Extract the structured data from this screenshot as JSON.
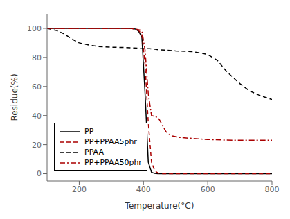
{
  "chart_data": {
    "type": "line",
    "xlabel": "Temperature(°C)",
    "ylabel": "Residue(%)",
    "xlim": [
      100,
      800
    ],
    "ylim": [
      -5,
      110
    ],
    "xticks": [
      200,
      400,
      600,
      800
    ],
    "yticks": [
      0,
      20,
      40,
      60,
      80,
      100
    ],
    "grid": false,
    "legend": "lower left",
    "series": [
      {
        "name": "PP",
        "color": "#000000",
        "line_style": "solid",
        "x": [
          100,
          355,
          365,
          375,
          385,
          395,
          405,
          415,
          425,
          435,
          445,
          460,
          800
        ],
        "values": [
          100,
          100,
          99.8,
          99.5,
          98,
          94,
          55,
          8,
          1,
          0.2,
          0,
          0,
          0
        ]
      },
      {
        "name": "PP+PPAA5phr",
        "color": "#aa0000",
        "line_style": "dashed",
        "x": [
          100,
          355,
          365,
          375,
          385,
          395,
          405,
          415,
          425,
          435,
          445,
          455,
          465,
          800
        ],
        "values": [
          100,
          100,
          99.8,
          99.5,
          98.5,
          96,
          75,
          35,
          8,
          2,
          0.5,
          0,
          0,
          0
        ]
      },
      {
        "name": "PPAA",
        "color": "#000000",
        "line_style": "dashed",
        "x": [
          100,
          130,
          155,
          175,
          200,
          230,
          260,
          300,
          340,
          370,
          390,
          410,
          420,
          430,
          440,
          450,
          470,
          500,
          550,
          580,
          600,
          630,
          660,
          700,
          730,
          760,
          800
        ],
        "values": [
          100,
          98.5,
          96,
          93,
          90,
          88.5,
          87.5,
          87,
          86.8,
          86.5,
          86.2,
          86,
          86,
          85.8,
          85.5,
          85.2,
          85,
          84.5,
          84,
          83,
          82,
          78,
          70,
          62,
          57,
          54,
          51
        ]
      },
      {
        "name": "PP+PPAA50phr",
        "color": "#aa0000",
        "line_style": "dashdot",
        "x": [
          100,
          355,
          365,
          375,
          385,
          395,
          405,
          415,
          425,
          435,
          440,
          445,
          450,
          460,
          470,
          480,
          490,
          510,
          540,
          570,
          600,
          650,
          700,
          750,
          800
        ],
        "values": [
          100,
          100,
          99.8,
          99.5,
          99,
          98.5,
          85,
          55,
          40,
          39.5,
          39,
          38.5,
          37,
          33,
          29,
          27,
          26,
          25,
          24.5,
          24,
          23.5,
          23.2,
          23,
          23,
          23
        ]
      }
    ]
  }
}
